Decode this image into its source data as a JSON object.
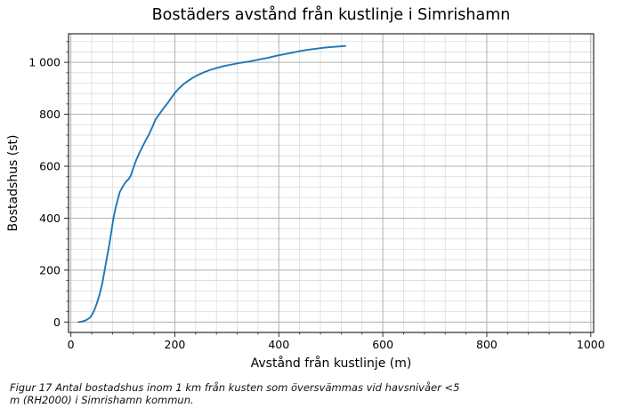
{
  "chart_data": {
    "type": "line",
    "title": "Bostäders avstånd från kustlinje i Simrishamn",
    "xlabel": "Avstånd från kustlinje (m)",
    "ylabel": "Bostadshus (st)",
    "caption": "Figur 17 Antal bostadshus inom 1 km från kusten som översvämmas vid havsnivåer <5 m (RH2000) i Simrishamn kommun.",
    "line_color": "#1f77b4",
    "grid": "major+minor",
    "legend": "none",
    "major_grid_color": "#b0b0b0",
    "minor_grid_color": "#dcdcdc",
    "spine_color": "#2a2a2a",
    "xlim": [
      -4.5,
      1005.5
    ],
    "ylim": [
      -40,
      1110
    ],
    "x_ticks": [
      0,
      200,
      400,
      600,
      800,
      1000
    ],
    "x_tick_labels": [
      "0",
      "200",
      "400",
      "600",
      "800",
      "1000"
    ],
    "y_ticks": [
      0,
      200,
      400,
      600,
      800,
      1000
    ],
    "y_tick_labels": [
      "0",
      "200",
      "400",
      "600",
      "800",
      "1 000"
    ],
    "minor_step_x": 40,
    "minor_step_y": 40,
    "points": [
      [
        15,
        0
      ],
      [
        22,
        2
      ],
      [
        30,
        8
      ],
      [
        36,
        16
      ],
      [
        40,
        26
      ],
      [
        45,
        45
      ],
      [
        50,
        72
      ],
      [
        55,
        105
      ],
      [
        60,
        145
      ],
      [
        65,
        200
      ],
      [
        70,
        255
      ],
      [
        74,
        300
      ],
      [
        78,
        350
      ],
      [
        82,
        400
      ],
      [
        86,
        440
      ],
      [
        90,
        470
      ],
      [
        94,
        500
      ],
      [
        100,
        522
      ],
      [
        105,
        538
      ],
      [
        110,
        548
      ],
      [
        115,
        562
      ],
      [
        120,
        592
      ],
      [
        126,
        625
      ],
      [
        132,
        652
      ],
      [
        138,
        676
      ],
      [
        144,
        700
      ],
      [
        150,
        722
      ],
      [
        157,
        752
      ],
      [
        163,
        780
      ],
      [
        170,
        800
      ],
      [
        178,
        822
      ],
      [
        186,
        843
      ],
      [
        193,
        863
      ],
      [
        200,
        882
      ],
      [
        208,
        900
      ],
      [
        216,
        915
      ],
      [
        225,
        928
      ],
      [
        234,
        940
      ],
      [
        244,
        951
      ],
      [
        255,
        961
      ],
      [
        267,
        970
      ],
      [
        280,
        978
      ],
      [
        295,
        986
      ],
      [
        310,
        992
      ],
      [
        326,
        998
      ],
      [
        342,
        1003
      ],
      [
        360,
        1010
      ],
      [
        378,
        1017
      ],
      [
        395,
        1025
      ],
      [
        410,
        1031
      ],
      [
        425,
        1037
      ],
      [
        440,
        1043
      ],
      [
        455,
        1048
      ],
      [
        470,
        1052
      ],
      [
        485,
        1056
      ],
      [
        500,
        1059
      ],
      [
        515,
        1061
      ],
      [
        528,
        1063
      ]
    ]
  }
}
